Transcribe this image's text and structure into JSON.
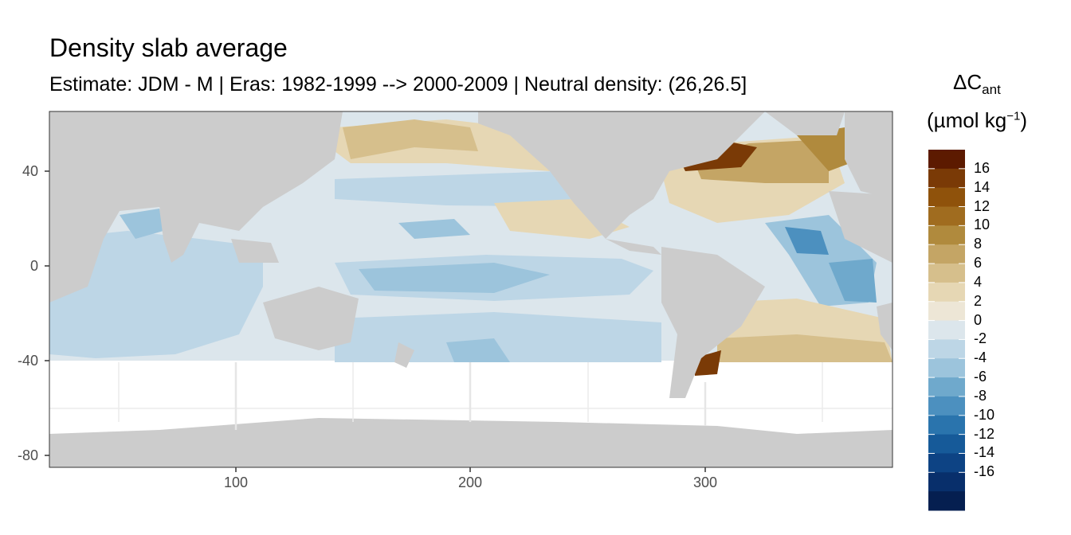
{
  "title": "Density slab average",
  "subtitle": "Estimate: JDM - M | Eras: 1982-1999 --> 2000-2009 | Neutral density: (26,26.5]",
  "x_axis": {
    "ticks": [
      "100",
      "200",
      "300"
    ]
  },
  "y_axis": {
    "ticks": [
      "40",
      "0",
      "-40",
      "-80"
    ]
  },
  "legend": {
    "title_main": "ΔC",
    "title_sub": "ant",
    "unit_prefix": "(µmol kg",
    "unit_sup": "−1",
    "unit_suffix": ")",
    "labels": [
      "16",
      "14",
      "12",
      "10",
      "8",
      "6",
      "4",
      "2",
      "0",
      "-2",
      "-4",
      "-6",
      "-8",
      "-10",
      "-12",
      "-14",
      "-16"
    ],
    "colors": [
      "#5c1a00",
      "#7a3a06",
      "#8f520b",
      "#a06c1f",
      "#b08a3d",
      "#c4a565",
      "#d6bf8c",
      "#e6d7b4",
      "#ede6d6",
      "#dce6ec",
      "#bdd6e6",
      "#9cc4dc",
      "#6fa9cc",
      "#4c90bf",
      "#2a74ad",
      "#165a99",
      "#0d4384",
      "#082f6b",
      "#051f50"
    ]
  },
  "chart_data": {
    "type": "heatmap",
    "title": "Density slab average",
    "subtitle": "Estimate: JDM - M | Eras: 1982-1999 --> 2000-2009 | Neutral density: (26,26.5]",
    "xlabel": "",
    "ylabel": "",
    "xlim": [
      20,
      380
    ],
    "ylim": [
      -85,
      65
    ],
    "x_ticks": [
      100,
      200,
      300
    ],
    "y_ticks": [
      40,
      0,
      -40,
      -80
    ],
    "colorbar": {
      "label": "ΔCant (µmol kg−1)",
      "range": [
        -18,
        18
      ],
      "breaks": [
        16,
        14,
        12,
        10,
        8,
        6,
        4,
        2,
        0,
        -2,
        -4,
        -6,
        -8,
        -10,
        -12,
        -14,
        -16
      ]
    },
    "notes": "Ocean values shown between ~40S and ~60N; land grey; Southern Ocean south of 40S blank."
  },
  "colors": {
    "land": "#cccccc",
    "panel_bg": "#ffffff",
    "grid": "#ebebeb",
    "border": "#333333"
  }
}
